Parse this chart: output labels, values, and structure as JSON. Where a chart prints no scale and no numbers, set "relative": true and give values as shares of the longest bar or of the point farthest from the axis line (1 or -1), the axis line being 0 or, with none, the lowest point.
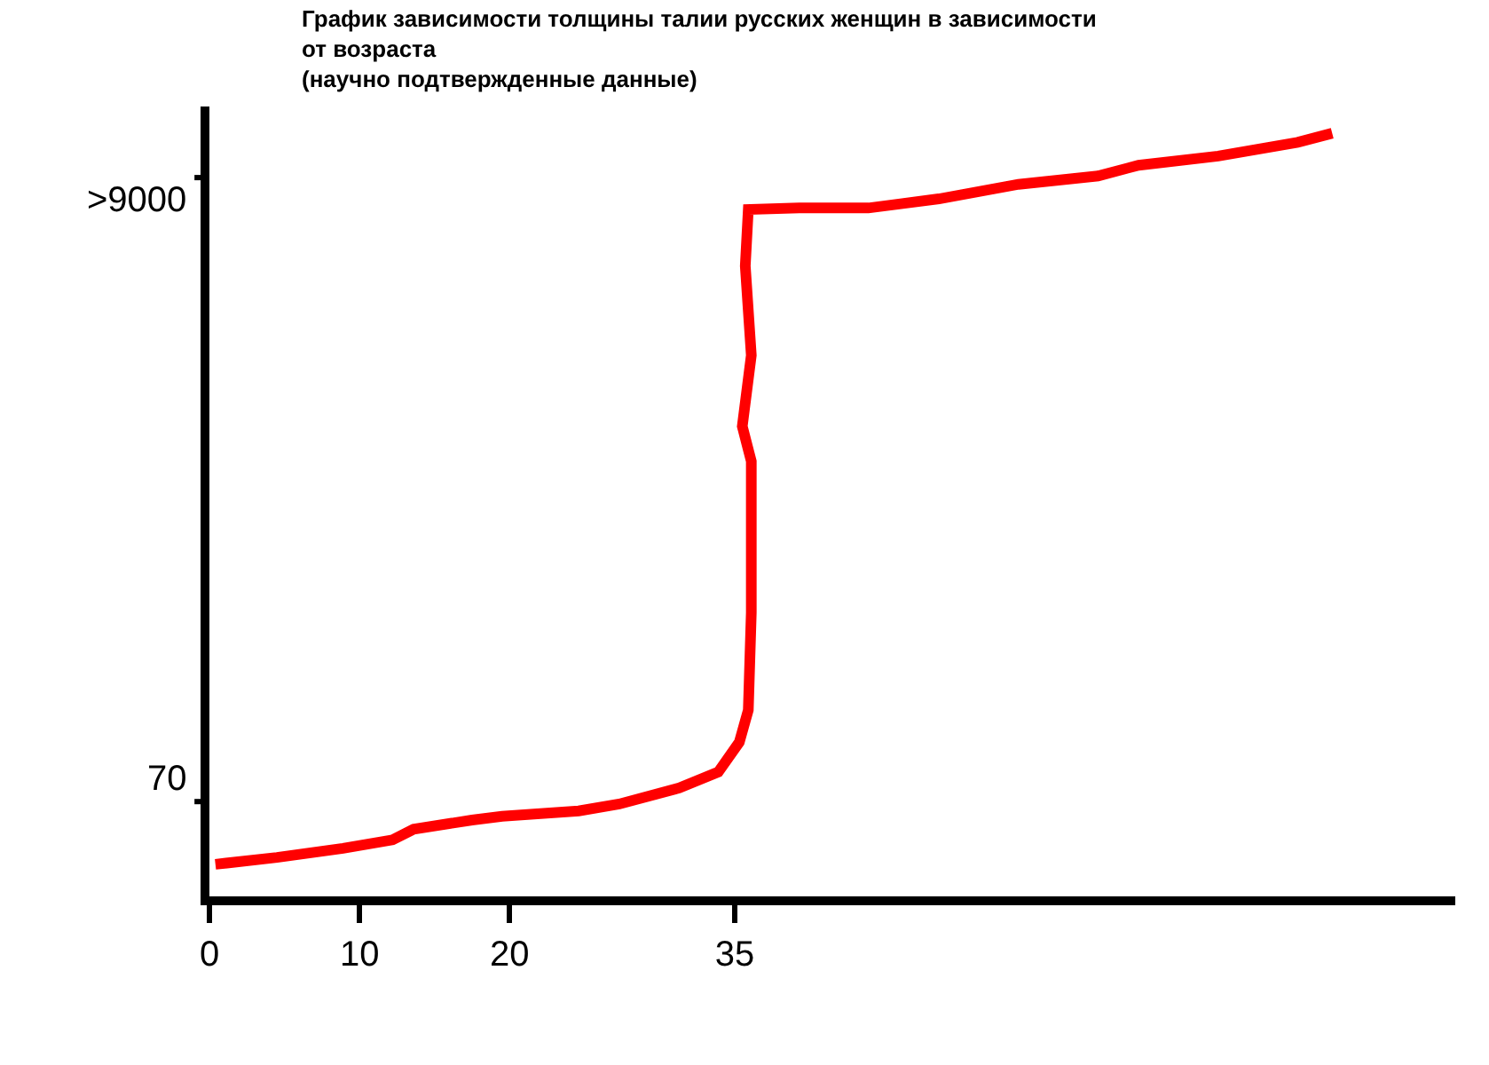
{
  "chart_data": {
    "type": "line",
    "title": "График зависимости толщины талии русских женщин в зависимости\nот возраста\n(научно подтвержденные данные)",
    "relative": true,
    "legend": false,
    "xlim": [
      0,
      83
    ],
    "xticks": [
      0,
      10,
      20,
      35
    ],
    "annotations": [
      "70",
      ">9000"
    ],
    "series": [
      {
        "color": "#ff0000",
        "x": [
          0.4,
          4.5,
          8.9,
          12.2,
          13.6,
          17.5,
          19.5,
          24.6,
          27.3,
          31.3,
          33.9,
          35.3,
          35.9,
          36.1,
          36.1,
          35.5,
          36.1,
          35.7,
          35.9,
          39.3,
          43.9,
          48.6,
          53.9,
          59.2,
          61.9,
          67.2,
          72.5,
          74.8
        ],
        "values": [
          0.042,
          0.051,
          0.063,
          0.074,
          0.088,
          0.1,
          0.105,
          0.112,
          0.121,
          0.142,
          0.163,
          0.202,
          0.244,
          0.372,
          0.57,
          0.616,
          0.709,
          0.826,
          0.9,
          0.902,
          0.902,
          0.914,
          0.933,
          0.944,
          0.958,
          0.97,
          0.988,
          1
        ]
      }
    ]
  }
}
